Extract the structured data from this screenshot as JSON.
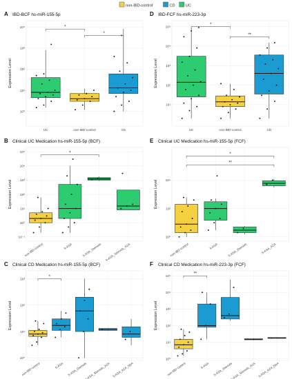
{
  "legend": {
    "items": [
      {
        "label": "non-IBD-control",
        "color": "#f5d142"
      },
      {
        "label": "CD",
        "color": "#1a9bd1"
      },
      {
        "label": "UC",
        "color": "#2ecc71"
      }
    ]
  },
  "colors": {
    "non-IBD-control": "#f5d142",
    "CD": "#1a9bd1",
    "UC": "#2ecc71",
    "UC_dark": "#1aa156"
  },
  "chart_data": [
    {
      "letter": "A",
      "title": "IBD-BCF hs-miR-155-5p",
      "type": "box",
      "ylabel": "Expression Level",
      "yscale": "log",
      "ylim": [
        0.2,
        20000
      ],
      "yticks": [
        {
          "v": 1,
          "label": "10⁰"
        },
        {
          "v": 10,
          "label": "10¹"
        },
        {
          "v": 100,
          "label": "10²"
        },
        {
          "v": 1000,
          "label": "10³"
        },
        {
          "v": 10000,
          "label": "10⁴"
        }
      ],
      "categories": [
        "UC",
        "non-IBD-control",
        "CD"
      ],
      "boxes": [
        {
          "group": "UC",
          "color": "UC",
          "q1": 4.5,
          "median": 8,
          "q3": 40,
          "whisker_low": 1.5,
          "whisker_high": 800,
          "points": [
            1.5,
            2,
            3,
            4,
            5,
            6,
            7,
            8,
            10,
            20,
            30,
            50,
            60,
            1500
          ]
        },
        {
          "group": "non-IBD-control",
          "color": "non-IBD-control",
          "q1": 3,
          "median": 4,
          "q3": 7,
          "whisker_low": 1.2,
          "whisker_high": 12,
          "points": [
            1.2,
            2,
            3,
            3.5,
            4,
            5,
            6,
            7,
            10
          ]
        },
        {
          "group": "CD",
          "color": "CD",
          "q1": 7,
          "median": 13,
          "q3": 60,
          "whisker_low": 1,
          "whisker_high": 8000,
          "points": [
            1,
            2,
            3,
            5,
            8,
            10,
            13,
            20,
            40,
            80,
            200,
            400,
            4000
          ]
        }
      ],
      "brackets": [
        {
          "from": 0,
          "to": 1,
          "label": "*",
          "y": 8000
        },
        {
          "from": 1,
          "to": 2,
          "label": "*",
          "y": 4000
        }
      ]
    },
    {
      "letter": "D",
      "title": "IBD-FCF hs-miR-223-3p",
      "type": "box",
      "ylabel": "Expression Level",
      "yscale": "log",
      "ylim": [
        0.8,
        200000
      ],
      "yticks": [
        {
          "v": 10,
          "label": "10¹"
        },
        {
          "v": 100,
          "label": "10²"
        },
        {
          "v": 1000,
          "label": "10³"
        },
        {
          "v": 10000,
          "label": "10⁴"
        },
        {
          "v": 100000,
          "label": "10⁵"
        }
      ],
      "categories": [
        "UC",
        "non-IBD-control",
        "CD"
      ],
      "boxes": [
        {
          "group": "UC",
          "color": "UC",
          "q1": 25,
          "median": 140,
          "q3": 3000,
          "whisker_low": 2,
          "whisker_high": 90000,
          "points": [
            2,
            5,
            8,
            12,
            20,
            30,
            60,
            100,
            150,
            300,
            600,
            1500,
            3000,
            8000,
            30000,
            60000,
            90000
          ]
        },
        {
          "group": "non-IBD-control",
          "color": "non-IBD-control",
          "q1": 8,
          "median": 14,
          "q3": 28,
          "whisker_low": 2,
          "whisker_high": 120,
          "points": [
            2,
            4,
            6,
            8,
            10,
            12,
            14,
            18,
            25,
            30,
            60,
            120
          ]
        },
        {
          "group": "CD",
          "color": "CD",
          "q1": 35,
          "median": 400,
          "q3": 3500,
          "whisker_low": 2,
          "whisker_high": 15000,
          "points": [
            2,
            6,
            15,
            30,
            50,
            100,
            200,
            400,
            700,
            1200,
            2000,
            3500,
            8000,
            15000
          ]
        }
      ],
      "brackets": [
        {
          "from": 0,
          "to": 1,
          "label": "*",
          "y": 100000
        },
        {
          "from": 1,
          "to": 2,
          "label": "**",
          "y": 30000
        }
      ]
    },
    {
      "letter": "B",
      "title": "Clinical UC Medication hs-miR-155-5p (BCF)",
      "type": "box",
      "ylabel": "Expression Level",
      "yscale": "log",
      "ylim": [
        0.05,
        200000
      ],
      "yticks": [
        {
          "v": 0.1,
          "label": "10⁻¹"
        },
        {
          "v": 1,
          "label": "10⁰"
        },
        {
          "v": 10,
          "label": "10¹"
        },
        {
          "v": 100,
          "label": "10²"
        },
        {
          "v": 1000,
          "label": "10³"
        },
        {
          "v": 10000,
          "label": "10⁴"
        },
        {
          "v": 100000,
          "label": "10⁵"
        }
      ],
      "categories": [
        "non-IBD-control",
        "5-ASA",
        "5-ASA_Steroids",
        "5-ASA_Steroids_AZA"
      ],
      "boxes": [
        {
          "group": "non-IBD-control",
          "color": "non-IBD-control",
          "q1": 1,
          "median": 2,
          "q3": 5,
          "whisker_low": 0.2,
          "whisker_high": 60,
          "points": [
            0.2,
            0.5,
            1,
            1.5,
            2,
            3,
            4,
            6,
            10,
            60
          ]
        },
        {
          "group": "5-ASA",
          "color": "UC",
          "q1": 2,
          "median": 10,
          "q3": 500,
          "whisker_low": 0.2,
          "whisker_high": 10000,
          "points": [
            0.2,
            0.5,
            1,
            2,
            5,
            10,
            20,
            100,
            500,
            2000,
            30000
          ]
        },
        {
          "group": "5-ASA_Steroids",
          "color": "UC_dark",
          "q1": 1000,
          "median": 1200,
          "q3": 1500,
          "whisker_low": 900,
          "whisker_high": 1800,
          "points": [
            1100,
            1300
          ]
        },
        {
          "group": "5-ASA_Steroids_AZA",
          "color": "UC",
          "q1": 8,
          "median": 15,
          "q3": 200,
          "whisker_low": 8,
          "whisker_high": 200,
          "points": [
            10,
            15,
            20,
            3000
          ]
        }
      ],
      "brackets": [
        {
          "from": 0,
          "to": 2,
          "label": "*",
          "y": 60000
        }
      ]
    },
    {
      "letter": "E",
      "title": "Clinical UC Medication hs-miR-155-5p (FCF)",
      "type": "box",
      "ylabel": "Expression Level",
      "yscale": "log",
      "ylim": [
        0.5,
        2000000
      ],
      "yticks": [
        {
          "v": 1,
          "label": "10⁰"
        },
        {
          "v": 100,
          "label": "10²"
        },
        {
          "v": 10000,
          "label": "10⁴"
        }
      ],
      "categories": [
        "non-IBD-control",
        "5-ASA",
        "5-ASA_Steroids",
        "5-ASA_AZA"
      ],
      "boxes": [
        {
          "group": "non-IBD-control",
          "color": "non-IBD-control",
          "q1": 2,
          "median": 8,
          "q3": 200,
          "whisker_low": 1,
          "whisker_high": 600,
          "points": [
            1,
            2,
            3,
            5,
            8,
            20,
            60,
            150,
            400,
            600
          ]
        },
        {
          "group": "5-ASA",
          "color": "UC",
          "q1": 15,
          "median": 100,
          "q3": 300,
          "whisker_low": 3,
          "whisker_high": 500,
          "points": [
            3,
            10,
            20,
            50,
            100,
            200,
            400,
            20000
          ]
        },
        {
          "group": "5-ASA_Steroids",
          "color": "UC",
          "q1": 2,
          "median": 3,
          "q3": 5,
          "whisker_low": 1.5,
          "whisker_high": 6,
          "points": [
            2,
            4
          ]
        },
        {
          "group": "5-ASA_AZA",
          "color": "UC",
          "q1": 4000,
          "median": 6000,
          "q3": 9000,
          "whisker_low": 3000,
          "whisker_high": 12000,
          "points": [
            5000,
            10000
          ]
        }
      ],
      "brackets": [
        {
          "from": 0,
          "to": 3,
          "label": "*",
          "y": 500000
        },
        {
          "from": 0,
          "to": 3,
          "label": "**",
          "y": 120000
        }
      ]
    },
    {
      "letter": "C",
      "title": "Clinical CD Medication hs-miR-155-5p (BCF)",
      "type": "box",
      "ylabel": "Expression Level",
      "yscale": "log",
      "ylim": [
        0.8,
        2000
      ],
      "yticks": [
        {
          "v": 1,
          "label": "10⁰"
        },
        {
          "v": 10,
          "label": "10¹"
        },
        {
          "v": 100,
          "label": "10²"
        },
        {
          "v": 1000,
          "label": "10³"
        }
      ],
      "categories": [
        "non-IBD-control",
        "5-ASA",
        "5-ASA_Steroids",
        "5-ASA_Steroids_AZA",
        "5-ASA_AZA_5DA"
      ],
      "boxes": [
        {
          "group": "non-IBD-control",
          "color": "non-IBD-control",
          "q1": 6.5,
          "median": 8,
          "q3": 11,
          "whisker_low": 3,
          "whisker_high": 25,
          "points": [
            3,
            4,
            6,
            7,
            8,
            9,
            10,
            12,
            20,
            25
          ]
        },
        {
          "group": "5-ASA",
          "color": "CD",
          "q1": 11,
          "median": 17,
          "q3": 30,
          "whisker_low": 6,
          "whisker_high": 60,
          "points": [
            6,
            12,
            15,
            20,
            30,
            50
          ]
        },
        {
          "group": "5-ASA_Steroids",
          "color": "CD",
          "q1": 10,
          "median": 60,
          "q3": 200,
          "whisker_low": 1,
          "whisker_high": 1000,
          "points": [
            1,
            10,
            30,
            60,
            150,
            400
          ]
        },
        {
          "group": "5-ASA_Steroids_AZA",
          "color": "CD",
          "q1": 11,
          "median": 12,
          "q3": 13,
          "whisker_low": 10.5,
          "whisker_high": 13.5,
          "points": [
            12
          ]
        },
        {
          "group": "5-ASA_AZA_5DA",
          "color": "CD",
          "q1": 6,
          "median": 8,
          "q3": 15,
          "whisker_low": 3,
          "whisker_high": 30,
          "points": [
            5,
            10
          ]
        }
      ],
      "brackets": [
        {
          "from": 0,
          "to": 1,
          "label": "*",
          "y": 1000
        }
      ]
    },
    {
      "letter": "F",
      "title": "Clinical CD Medication hs-miR-223-3p (FCF)",
      "type": "box",
      "ylabel": "Expression Level",
      "yscale": "log",
      "ylim": [
        0.8,
        200000
      ],
      "yticks": [
        {
          "v": 1,
          "label": "10⁰"
        },
        {
          "v": 10,
          "label": "10¹"
        },
        {
          "v": 100,
          "label": "10²"
        },
        {
          "v": 1000,
          "label": "10³"
        },
        {
          "v": 10000,
          "label": "10⁴"
        },
        {
          "v": 100000,
          "label": "10⁵"
        }
      ],
      "categories": [
        "non-IBD-control",
        "5-ASA",
        "5-ASA_Steroids",
        "5-ASA_Steroids_AZA",
        "5-ASA_AZA_5DA"
      ],
      "boxes": [
        {
          "group": "non-IBD-control",
          "color": "non-IBD-control",
          "q1": 4,
          "median": 7,
          "q3": 15,
          "whisker_low": 1.5,
          "whisker_high": 60,
          "points": [
            1.5,
            2,
            3,
            5,
            7,
            10,
            15,
            25,
            40,
            60
          ]
        },
        {
          "group": "5-ASA",
          "color": "CD",
          "q1": 80,
          "median": 100,
          "q3": 2000,
          "whisker_low": 15,
          "whisker_high": 10000,
          "points": [
            15,
            100,
            2000,
            10000
          ]
        },
        {
          "group": "5-ASA_Steroids",
          "color": "CD",
          "q1": 250,
          "median": 400,
          "q3": 5000,
          "whisker_low": 200,
          "whisker_high": 60000,
          "points": [
            300,
            500,
            20000
          ]
        },
        {
          "group": "5-ASA_Steroids_AZA",
          "color": "CD",
          "q1": 14,
          "median": 15,
          "q3": 16,
          "whisker_low": 13,
          "whisker_high": 17,
          "points": [
            15
          ]
        },
        {
          "group": "5-ASA_AZA_5DA",
          "color": "CD",
          "q1": 17,
          "median": 18,
          "q3": 19,
          "whisker_low": 16,
          "whisker_high": 20,
          "points": [
            18
          ]
        }
      ],
      "brackets": [
        {
          "from": 0,
          "to": 1,
          "label": "**",
          "y": 100000
        }
      ]
    }
  ]
}
